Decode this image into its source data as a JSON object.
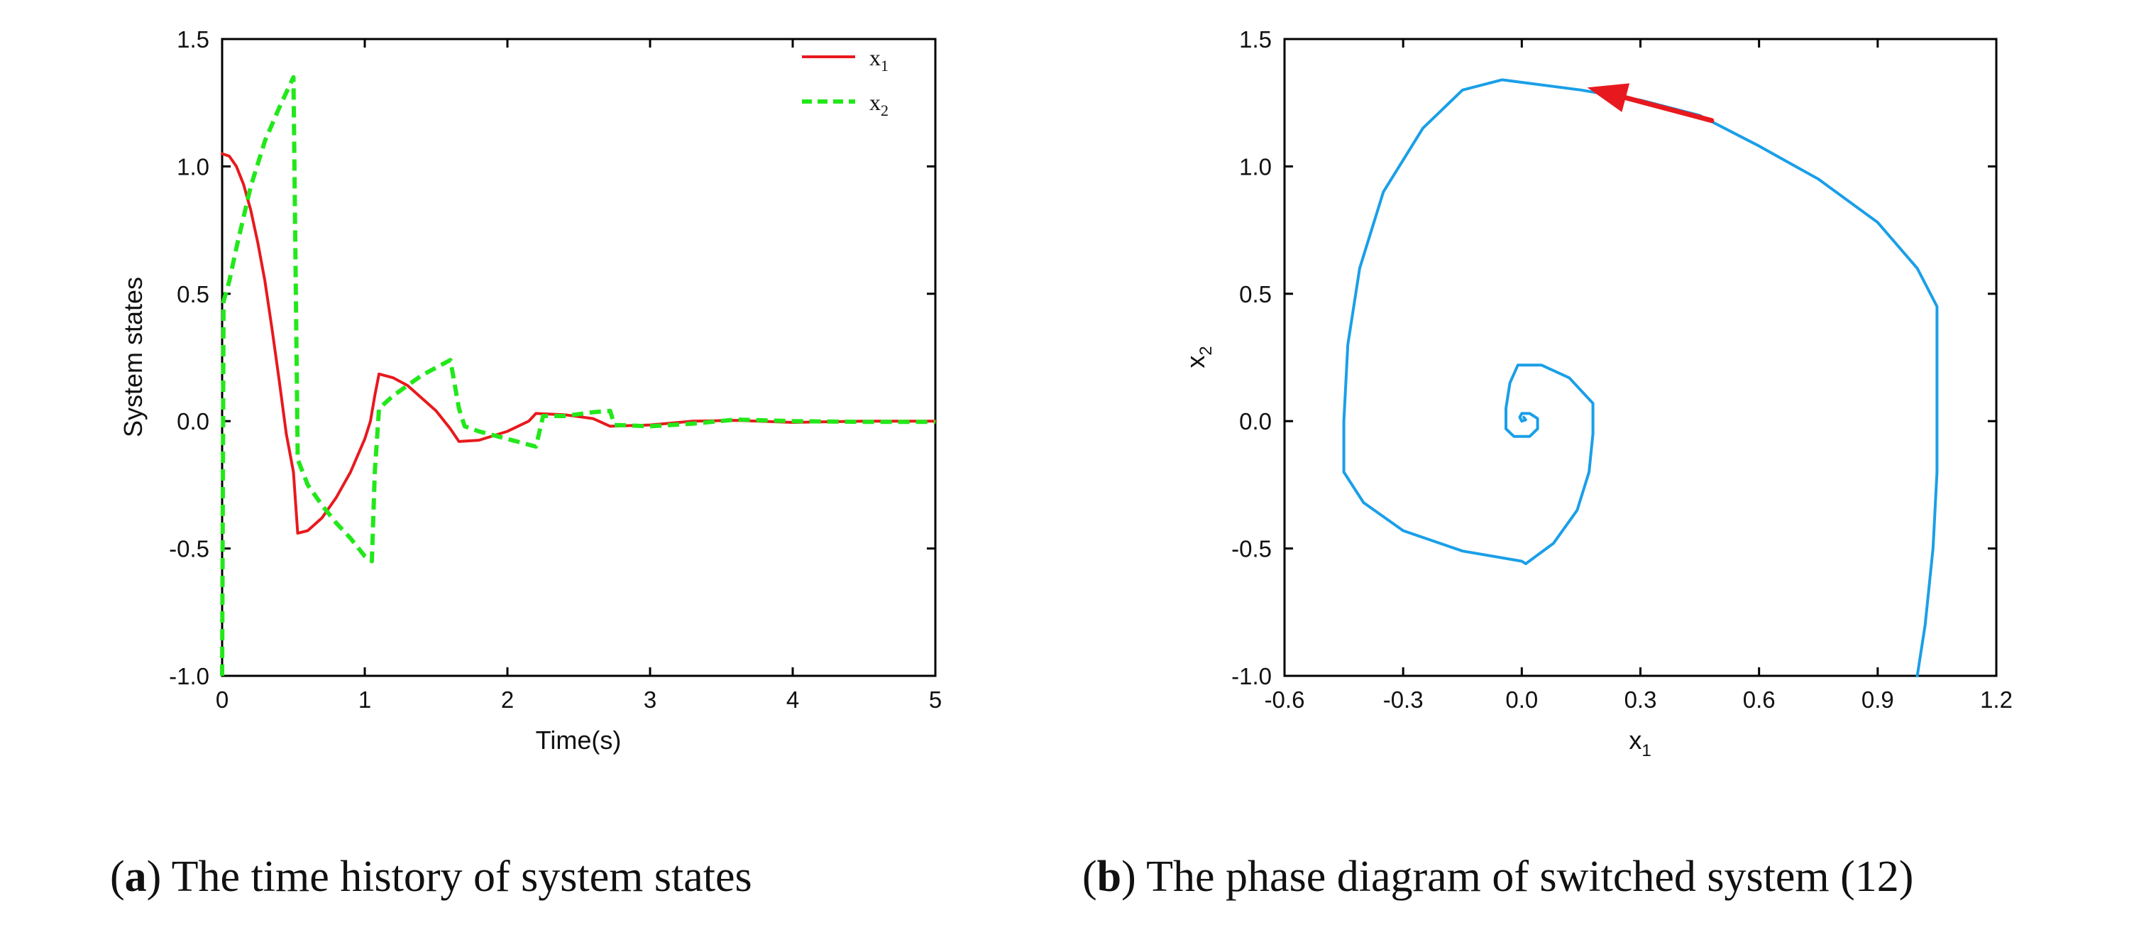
{
  "captions": {
    "a": {
      "letter": "a",
      "text": ") The time history of system states"
    },
    "b": {
      "letter": "b",
      "text": ") The phase diagram of switched system (12)"
    }
  },
  "chart_data": [
    {
      "type": "line",
      "panel": "a",
      "xlabel": "Time(s)",
      "ylabel": "System states",
      "xlim": [
        0,
        5
      ],
      "ylim": [
        -1,
        1.5
      ],
      "xticks": [
        0,
        1,
        2,
        3,
        4,
        5
      ],
      "xtick_labels": [
        "0",
        "1",
        "2",
        "3",
        "4",
        "5"
      ],
      "yticks": [
        -1,
        -0.5,
        0,
        0.5,
        1,
        1.5
      ],
      "ytick_labels": [
        "-1.0",
        "-0.5",
        "0.0",
        "0.5",
        "1.0",
        "1.5"
      ],
      "legend": {
        "position": "top-right",
        "entries": [
          "x",
          "x"
        ],
        "subscripts": [
          "1",
          "2"
        ]
      },
      "series": [
        {
          "name": "x1",
          "color": "#e8191e",
          "style": "solid",
          "points": [
            [
              0,
              1.05
            ],
            [
              0.05,
              1.04
            ],
            [
              0.1,
              1.0
            ],
            [
              0.15,
              0.93
            ],
            [
              0.2,
              0.83
            ],
            [
              0.25,
              0.7
            ],
            [
              0.3,
              0.55
            ],
            [
              0.35,
              0.36
            ],
            [
              0.4,
              0.16
            ],
            [
              0.45,
              -0.05
            ],
            [
              0.5,
              -0.2
            ],
            [
              0.53,
              -0.44
            ],
            [
              0.6,
              -0.43
            ],
            [
              0.7,
              -0.38
            ],
            [
              0.8,
              -0.3
            ],
            [
              0.9,
              -0.2
            ],
            [
              1.0,
              -0.07
            ],
            [
              1.04,
              0.0
            ],
            [
              1.07,
              0.1
            ],
            [
              1.1,
              0.185
            ],
            [
              1.2,
              0.17
            ],
            [
              1.3,
              0.14
            ],
            [
              1.4,
              0.09
            ],
            [
              1.5,
              0.04
            ],
            [
              1.6,
              -0.03
            ],
            [
              1.66,
              -0.08
            ],
            [
              1.8,
              -0.075
            ],
            [
              2.0,
              -0.04
            ],
            [
              2.15,
              0.0
            ],
            [
              2.2,
              0.03
            ],
            [
              2.4,
              0.025
            ],
            [
              2.6,
              0.01
            ],
            [
              2.72,
              -0.02
            ],
            [
              3.0,
              -0.015
            ],
            [
              3.3,
              0.0
            ],
            [
              3.6,
              0.003
            ],
            [
              4.0,
              -0.005
            ],
            [
              4.5,
              0.0
            ],
            [
              5.0,
              0.0
            ]
          ]
        },
        {
          "name": "x2",
          "color": "#22e81a",
          "style": "dashed",
          "points": [
            [
              0,
              -1.0
            ],
            [
              0.01,
              0.47
            ],
            [
              0.05,
              0.55
            ],
            [
              0.1,
              0.68
            ],
            [
              0.2,
              0.92
            ],
            [
              0.3,
              1.1
            ],
            [
              0.4,
              1.23
            ],
            [
              0.5,
              1.35
            ],
            [
              0.53,
              -0.15
            ],
            [
              0.6,
              -0.25
            ],
            [
              0.7,
              -0.33
            ],
            [
              0.8,
              -0.4
            ],
            [
              0.9,
              -0.46
            ],
            [
              1.0,
              -0.53
            ],
            [
              1.05,
              -0.55
            ],
            [
              1.07,
              -0.2
            ],
            [
              1.1,
              0.05
            ],
            [
              1.2,
              0.1
            ],
            [
              1.3,
              0.14
            ],
            [
              1.4,
              0.18
            ],
            [
              1.5,
              0.21
            ],
            [
              1.6,
              0.24
            ],
            [
              1.66,
              0.05
            ],
            [
              1.7,
              -0.02
            ],
            [
              1.8,
              -0.04
            ],
            [
              2.0,
              -0.07
            ],
            [
              2.2,
              -0.1
            ],
            [
              2.25,
              0.02
            ],
            [
              2.4,
              0.02
            ],
            [
              2.6,
              0.035
            ],
            [
              2.72,
              0.04
            ],
            [
              2.75,
              -0.015
            ],
            [
              3.0,
              -0.02
            ],
            [
              3.3,
              -0.01
            ],
            [
              3.6,
              0.006
            ],
            [
              4.0,
              0.0
            ],
            [
              4.5,
              -0.003
            ],
            [
              5.0,
              -0.003
            ]
          ]
        }
      ]
    },
    {
      "type": "line",
      "panel": "b",
      "xlabel": "x",
      "xlabel_sub": "1",
      "ylabel": "x",
      "ylabel_sub": "2",
      "xlim": [
        -0.6,
        1.2
      ],
      "ylim": [
        -1,
        1.5
      ],
      "xticks": [
        -0.6,
        -0.3,
        0.0,
        0.3,
        0.6,
        0.9,
        1.2
      ],
      "xtick_labels": [
        "-0.6",
        "-0.3",
        "0.0",
        "0.3",
        "0.6",
        "0.9",
        "1.2"
      ],
      "yticks": [
        -1,
        -0.5,
        0,
        0.5,
        1,
        1.5
      ],
      "ytick_labels": [
        "-1.0",
        "-0.5",
        "0.0",
        "0.5",
        "1.0",
        "1.5"
      ],
      "series": [
        {
          "name": "trajectory",
          "color": "#1a9fe8",
          "style": "solid",
          "points": [
            [
              1.0,
              -1.0
            ],
            [
              1.02,
              -0.8
            ],
            [
              1.04,
              -0.5
            ],
            [
              1.05,
              -0.2
            ],
            [
              1.05,
              0.1
            ],
            [
              1.05,
              0.3
            ],
            [
              1.05,
              0.45
            ],
            [
              1.0,
              0.6
            ],
            [
              0.9,
              0.78
            ],
            [
              0.75,
              0.95
            ],
            [
              0.6,
              1.08
            ],
            [
              0.45,
              1.2
            ],
            [
              0.3,
              1.26
            ],
            [
              0.15,
              1.3
            ],
            [
              0.0,
              1.33
            ],
            [
              -0.05,
              1.34
            ],
            [
              -0.15,
              1.3
            ],
            [
              -0.25,
              1.15
            ],
            [
              -0.35,
              0.9
            ],
            [
              -0.41,
              0.6
            ],
            [
              -0.44,
              0.3
            ],
            [
              -0.45,
              0.0
            ],
            [
              -0.45,
              -0.2
            ],
            [
              -0.4,
              -0.32
            ],
            [
              -0.3,
              -0.43
            ],
            [
              -0.15,
              -0.51
            ],
            [
              0.0,
              -0.55
            ],
            [
              0.01,
              -0.56
            ],
            [
              0.08,
              -0.48
            ],
            [
              0.14,
              -0.35
            ],
            [
              0.17,
              -0.2
            ],
            [
              0.18,
              -0.05
            ],
            [
              0.18,
              0.07
            ],
            [
              0.12,
              0.17
            ],
            [
              0.05,
              0.22
            ],
            [
              -0.01,
              0.22
            ],
            [
              -0.03,
              0.15
            ],
            [
              -0.04,
              0.05
            ],
            [
              -0.04,
              -0.03
            ],
            [
              -0.02,
              -0.06
            ],
            [
              0.02,
              -0.06
            ],
            [
              0.04,
              -0.03
            ],
            [
              0.04,
              0.01
            ],
            [
              0.02,
              0.03
            ],
            [
              0.0,
              0.03
            ],
            [
              -0.005,
              0.015
            ],
            [
              0.0,
              0.0
            ],
            [
              0.01,
              0.005
            ],
            [
              0.005,
              0.015
            ]
          ]
        },
        {
          "name": "direction-arrow",
          "color": "#e8191e",
          "style": "arrow",
          "points": [
            [
              0.48,
              1.18
            ],
            [
              0.19,
              1.3
            ]
          ]
        }
      ]
    }
  ]
}
